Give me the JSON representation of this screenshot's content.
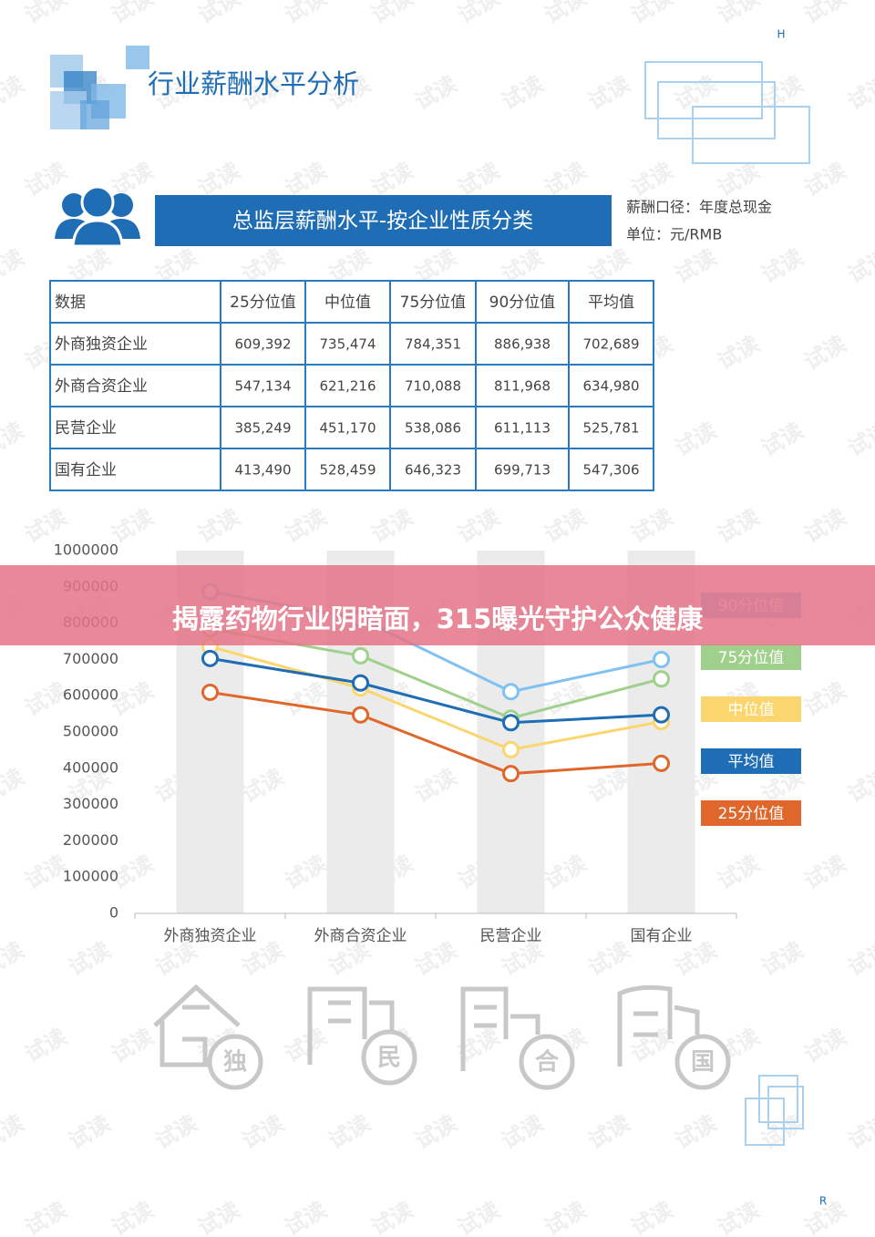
{
  "page": {
    "corner_top": "H",
    "corner_bottom": "R",
    "watermark": "试读",
    "title": "行业薪酬水平分析",
    "banner": "总监层薪酬水平-按企业性质分类",
    "notes": [
      "薪酬口径：年度总现金",
      "单位：元/RMB"
    ],
    "overlay": "揭露药物行业阴暗面，315曝光守护公众健康",
    "icons": [
      "独",
      "民",
      "合",
      "国"
    ]
  },
  "table": {
    "header": [
      "数据",
      "25分位值",
      "中位值",
      "75分位值",
      "90分位值",
      "平均值"
    ],
    "rows": [
      [
        "外商独资企业",
        "609,392",
        "735,474",
        "784,351",
        "886,938",
        "702,689"
      ],
      [
        "外商合资企业",
        "547,134",
        "621,216",
        "710,088",
        "811,968",
        "634,980"
      ],
      [
        "民营企业",
        "385,249",
        "451,170",
        "538,086",
        "611,113",
        "525,781"
      ],
      [
        "国有企业",
        "413,490",
        "528,459",
        "646,323",
        "699,713",
        "547,306"
      ]
    ]
  },
  "chart_data": {
    "type": "line",
    "categories": [
      "外商独资企业",
      "外商合资企业",
      "民营企业",
      "国有企业"
    ],
    "series": [
      {
        "name": "90分位值",
        "color": "#7fc2f2",
        "values": [
          886938,
          811968,
          611113,
          699713
        ]
      },
      {
        "name": "75分位值",
        "color": "#9fd18c",
        "values": [
          784351,
          710088,
          538086,
          646323
        ]
      },
      {
        "name": "中位值",
        "color": "#fbd66e",
        "values": [
          735474,
          621216,
          451170,
          528459
        ]
      },
      {
        "name": "平均值",
        "color": "#1f6db4",
        "values": [
          702689,
          634980,
          525781,
          547306
        ]
      },
      {
        "name": "25分位值",
        "color": "#e0672c",
        "values": [
          609392,
          547134,
          385249,
          413490
        ]
      }
    ],
    "ylim": [
      0,
      1000000
    ],
    "yticks": [
      0,
      100000,
      200000,
      300000,
      400000,
      500000,
      600000,
      700000,
      800000,
      900000,
      1000000
    ],
    "band_color": "#ebebeb"
  }
}
